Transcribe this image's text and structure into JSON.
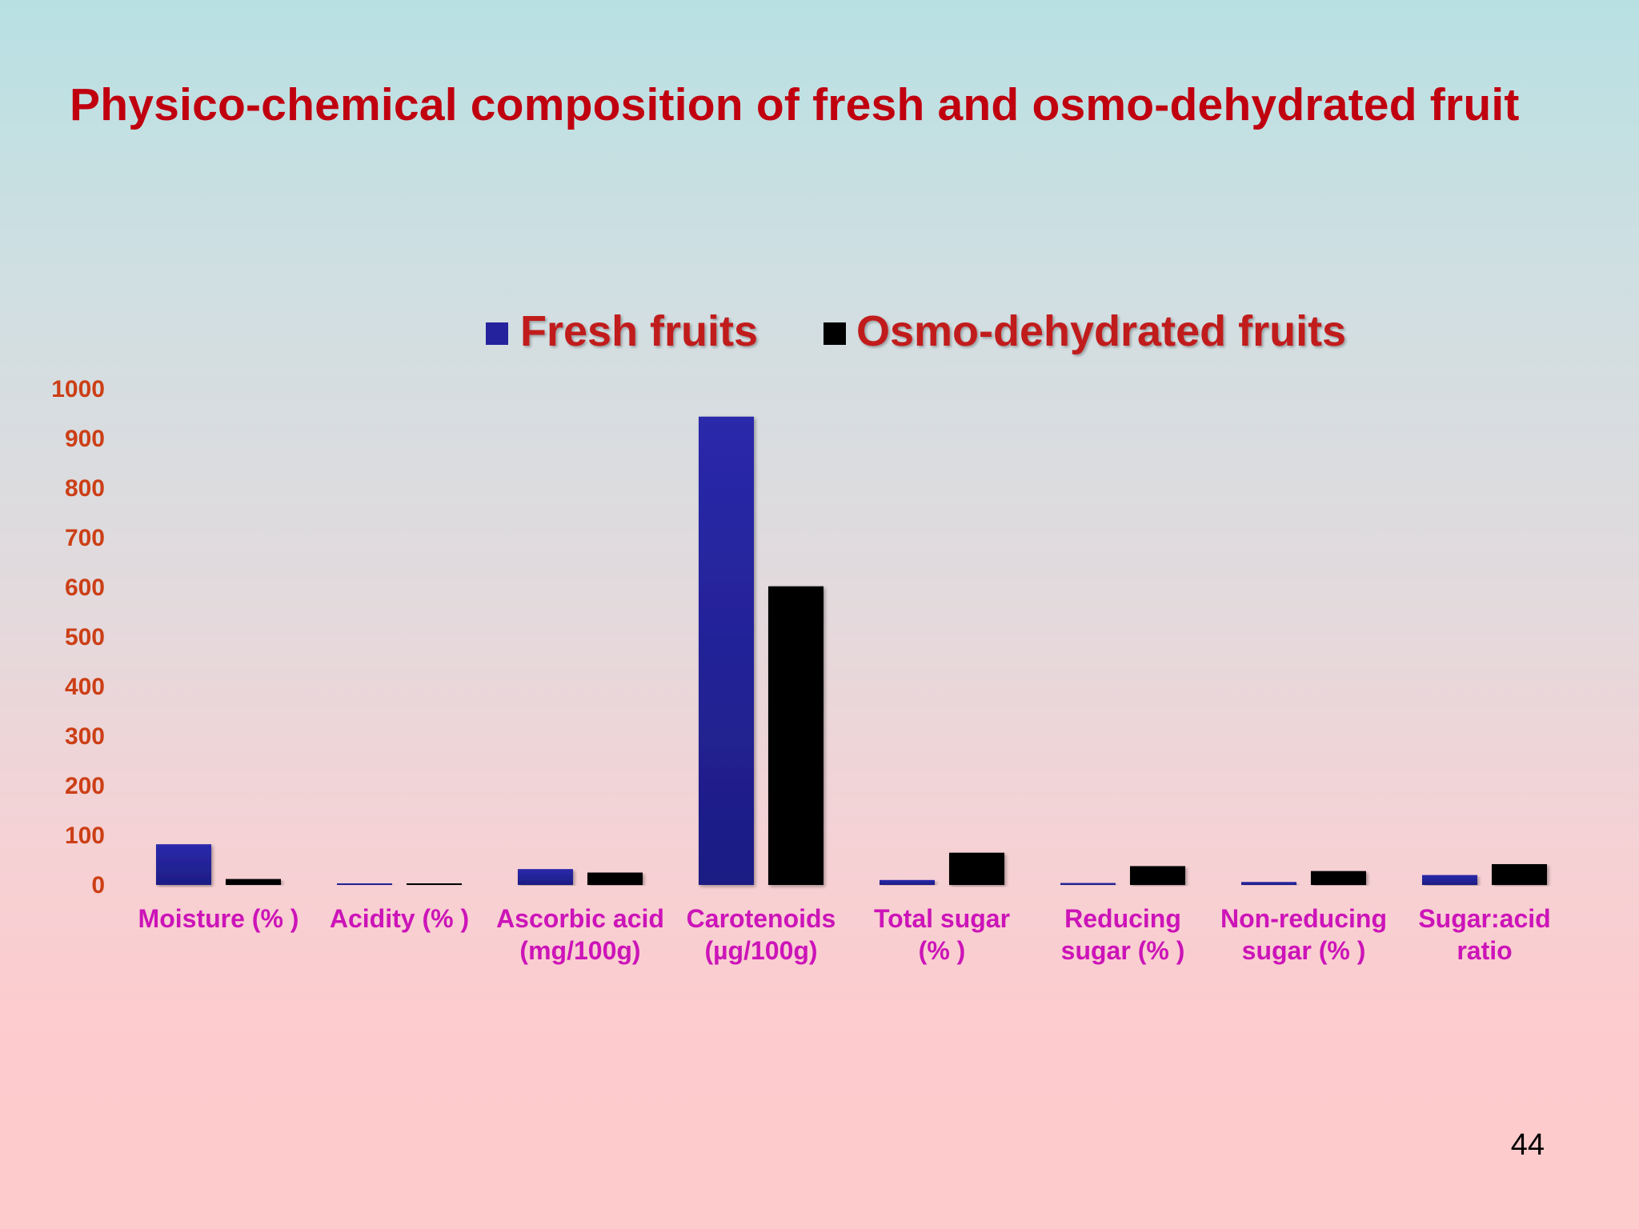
{
  "slide": {
    "title": "Physico-chemical composition of fresh and osmo-dehydrated fruit",
    "page_number": "44"
  },
  "colors": {
    "title": "#c0000f",
    "legend_text": "#c11b1f",
    "y_tick_text": "#cc3f16",
    "category_text": "#cc14b8",
    "fresh": "#24229c",
    "osmo": "#000000"
  },
  "chart_data": {
    "type": "bar",
    "title": "",
    "xlabel": "",
    "ylabel": "",
    "ylim": [
      0,
      1000
    ],
    "y_ticks": [
      "0",
      "100",
      "200",
      "300",
      "400",
      "500",
      "600",
      "700",
      "800",
      "900",
      "1000"
    ],
    "grid": false,
    "legend_position": "top-center",
    "categories": [
      [
        "Moisture (% )"
      ],
      [
        "Acidity (% )"
      ],
      [
        "Ascorbic acid",
        "(mg/100g)"
      ],
      [
        "Carotenoids",
        "(µg/100g)"
      ],
      [
        "Total sugar",
        "(% )"
      ],
      [
        "Reducing",
        "sugar (% )"
      ],
      [
        "Non-reducing",
        "sugar (% )"
      ],
      [
        "Sugar:acid",
        "ratio"
      ]
    ],
    "series": [
      {
        "name": "Fresh fruits",
        "color": "#24229c",
        "values": [
          82,
          0.5,
          32,
          944,
          10,
          4,
          6,
          20
        ]
      },
      {
        "name": "Osmo-dehydrated fruits",
        "color": "#000000",
        "values": [
          12,
          0.5,
          25,
          602,
          65,
          38,
          28,
          42
        ]
      }
    ]
  }
}
